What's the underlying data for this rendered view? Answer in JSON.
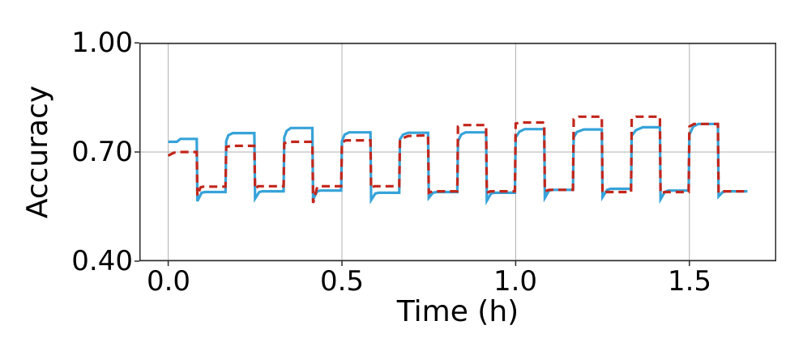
{
  "figure": {
    "background": "#ffffff",
    "text_color": "#000000"
  },
  "chart_data": {
    "type": "line",
    "title": "",
    "xlabel": "Time (h)",
    "ylabel": "Accuracy",
    "xlim": [
      -0.083,
      1.75
    ],
    "ylim": [
      0.4,
      1.0
    ],
    "xticks": [
      0.0,
      0.5,
      1.0,
      1.5
    ],
    "xtick_labels": [
      "0.0",
      "0.5",
      "1.0",
      "1.5"
    ],
    "yticks": [
      0.4,
      0.7,
      1.0
    ],
    "ytick_labels": [
      "0.40",
      "0.70",
      "1.00"
    ],
    "grid": true,
    "grid_color": "#b0b0b0",
    "spine_color": "#2b2b2b",
    "legend_position": "none",
    "series": [
      {
        "name": "blue solid line",
        "color": "#36a3d9",
        "dash": "solid",
        "line_width": 3.2,
        "points": [
          [
            0.0,
            0.728
          ],
          [
            0.025,
            0.728
          ],
          [
            0.035,
            0.736
          ],
          [
            0.082,
            0.736
          ],
          [
            0.084,
            0.565
          ],
          [
            0.096,
            0.588
          ],
          [
            0.106,
            0.59
          ],
          [
            0.165,
            0.59
          ],
          [
            0.167,
            0.73
          ],
          [
            0.173,
            0.746
          ],
          [
            0.186,
            0.752
          ],
          [
            0.248,
            0.752
          ],
          [
            0.25,
            0.572
          ],
          [
            0.262,
            0.59
          ],
          [
            0.271,
            0.592
          ],
          [
            0.332,
            0.592
          ],
          [
            0.334,
            0.74
          ],
          [
            0.341,
            0.758
          ],
          [
            0.353,
            0.766
          ],
          [
            0.415,
            0.766
          ],
          [
            0.417,
            0.57
          ],
          [
            0.429,
            0.592
          ],
          [
            0.438,
            0.594
          ],
          [
            0.498,
            0.594
          ],
          [
            0.5,
            0.73
          ],
          [
            0.508,
            0.748
          ],
          [
            0.521,
            0.754
          ],
          [
            0.582,
            0.754
          ],
          [
            0.584,
            0.568
          ],
          [
            0.596,
            0.586
          ],
          [
            0.606,
            0.588
          ],
          [
            0.665,
            0.588
          ],
          [
            0.667,
            0.735
          ],
          [
            0.676,
            0.748
          ],
          [
            0.691,
            0.753
          ],
          [
            0.748,
            0.753
          ],
          [
            0.75,
            0.574
          ],
          [
            0.762,
            0.588
          ],
          [
            0.772,
            0.59
          ],
          [
            0.832,
            0.59
          ],
          [
            0.834,
            0.73
          ],
          [
            0.843,
            0.748
          ],
          [
            0.856,
            0.754
          ],
          [
            0.915,
            0.754
          ],
          [
            0.917,
            0.566
          ],
          [
            0.929,
            0.586
          ],
          [
            0.938,
            0.588
          ],
          [
            0.998,
            0.588
          ],
          [
            1.0,
            0.74
          ],
          [
            1.011,
            0.756
          ],
          [
            1.026,
            0.763
          ],
          [
            1.082,
            0.763
          ],
          [
            1.084,
            0.574
          ],
          [
            1.096,
            0.594
          ],
          [
            1.106,
            0.596
          ],
          [
            1.165,
            0.596
          ],
          [
            1.167,
            0.74
          ],
          [
            1.176,
            0.755
          ],
          [
            1.196,
            0.762
          ],
          [
            1.248,
            0.762
          ],
          [
            1.25,
            0.576
          ],
          [
            1.263,
            0.596
          ],
          [
            1.273,
            0.599
          ],
          [
            1.332,
            0.599
          ],
          [
            1.334,
            0.745
          ],
          [
            1.346,
            0.76
          ],
          [
            1.366,
            0.768
          ],
          [
            1.415,
            0.768
          ],
          [
            1.417,
            0.57
          ],
          [
            1.429,
            0.59
          ],
          [
            1.439,
            0.594
          ],
          [
            1.498,
            0.594
          ],
          [
            1.5,
            0.748
          ],
          [
            1.511,
            0.77
          ],
          [
            1.526,
            0.777
          ],
          [
            1.582,
            0.777
          ],
          [
            1.584,
            0.578
          ],
          [
            1.596,
            0.59
          ],
          [
            1.606,
            0.592
          ],
          [
            1.667,
            0.592
          ]
        ]
      },
      {
        "name": "red dashed line",
        "color": "#c3261b",
        "dash": "dashed",
        "dash_pattern": [
          10,
          6
        ],
        "line_width": 3.2,
        "points": [
          [
            0.0,
            0.69
          ],
          [
            0.016,
            0.698
          ],
          [
            0.026,
            0.7
          ],
          [
            0.082,
            0.7
          ],
          [
            0.084,
            0.58
          ],
          [
            0.093,
            0.603
          ],
          [
            0.101,
            0.605
          ],
          [
            0.165,
            0.605
          ],
          [
            0.167,
            0.714
          ],
          [
            0.181,
            0.717
          ],
          [
            0.248,
            0.717
          ],
          [
            0.25,
            0.598
          ],
          [
            0.259,
            0.606
          ],
          [
            0.332,
            0.606
          ],
          [
            0.334,
            0.724
          ],
          [
            0.346,
            0.728
          ],
          [
            0.415,
            0.728
          ],
          [
            0.417,
            0.56
          ],
          [
            0.429,
            0.604
          ],
          [
            0.436,
            0.606
          ],
          [
            0.498,
            0.606
          ],
          [
            0.5,
            0.726
          ],
          [
            0.511,
            0.732
          ],
          [
            0.582,
            0.732
          ],
          [
            0.584,
            0.6
          ],
          [
            0.593,
            0.606
          ],
          [
            0.665,
            0.606
          ],
          [
            0.667,
            0.735
          ],
          [
            0.691,
            0.744
          ],
          [
            0.748,
            0.746
          ],
          [
            0.75,
            0.588
          ],
          [
            0.761,
            0.592
          ],
          [
            0.832,
            0.592
          ],
          [
            0.834,
            0.77
          ],
          [
            0.846,
            0.774
          ],
          [
            0.915,
            0.774
          ],
          [
            0.917,
            0.588
          ],
          [
            0.927,
            0.592
          ],
          [
            0.998,
            0.592
          ],
          [
            1.0,
            0.778
          ],
          [
            1.013,
            0.781
          ],
          [
            1.082,
            0.781
          ],
          [
            1.084,
            0.592
          ],
          [
            1.096,
            0.596
          ],
          [
            1.165,
            0.596
          ],
          [
            1.167,
            0.79
          ],
          [
            1.181,
            0.797
          ],
          [
            1.248,
            0.797
          ],
          [
            1.25,
            0.586
          ],
          [
            1.261,
            0.59
          ],
          [
            1.332,
            0.59
          ],
          [
            1.334,
            0.793
          ],
          [
            1.346,
            0.797
          ],
          [
            1.415,
            0.797
          ],
          [
            1.417,
            0.586
          ],
          [
            1.429,
            0.59
          ],
          [
            1.498,
            0.59
          ],
          [
            1.5,
            0.77
          ],
          [
            1.513,
            0.777
          ],
          [
            1.582,
            0.777
          ],
          [
            1.584,
            0.588
          ],
          [
            1.596,
            0.592
          ],
          [
            1.667,
            0.592
          ]
        ]
      }
    ]
  }
}
